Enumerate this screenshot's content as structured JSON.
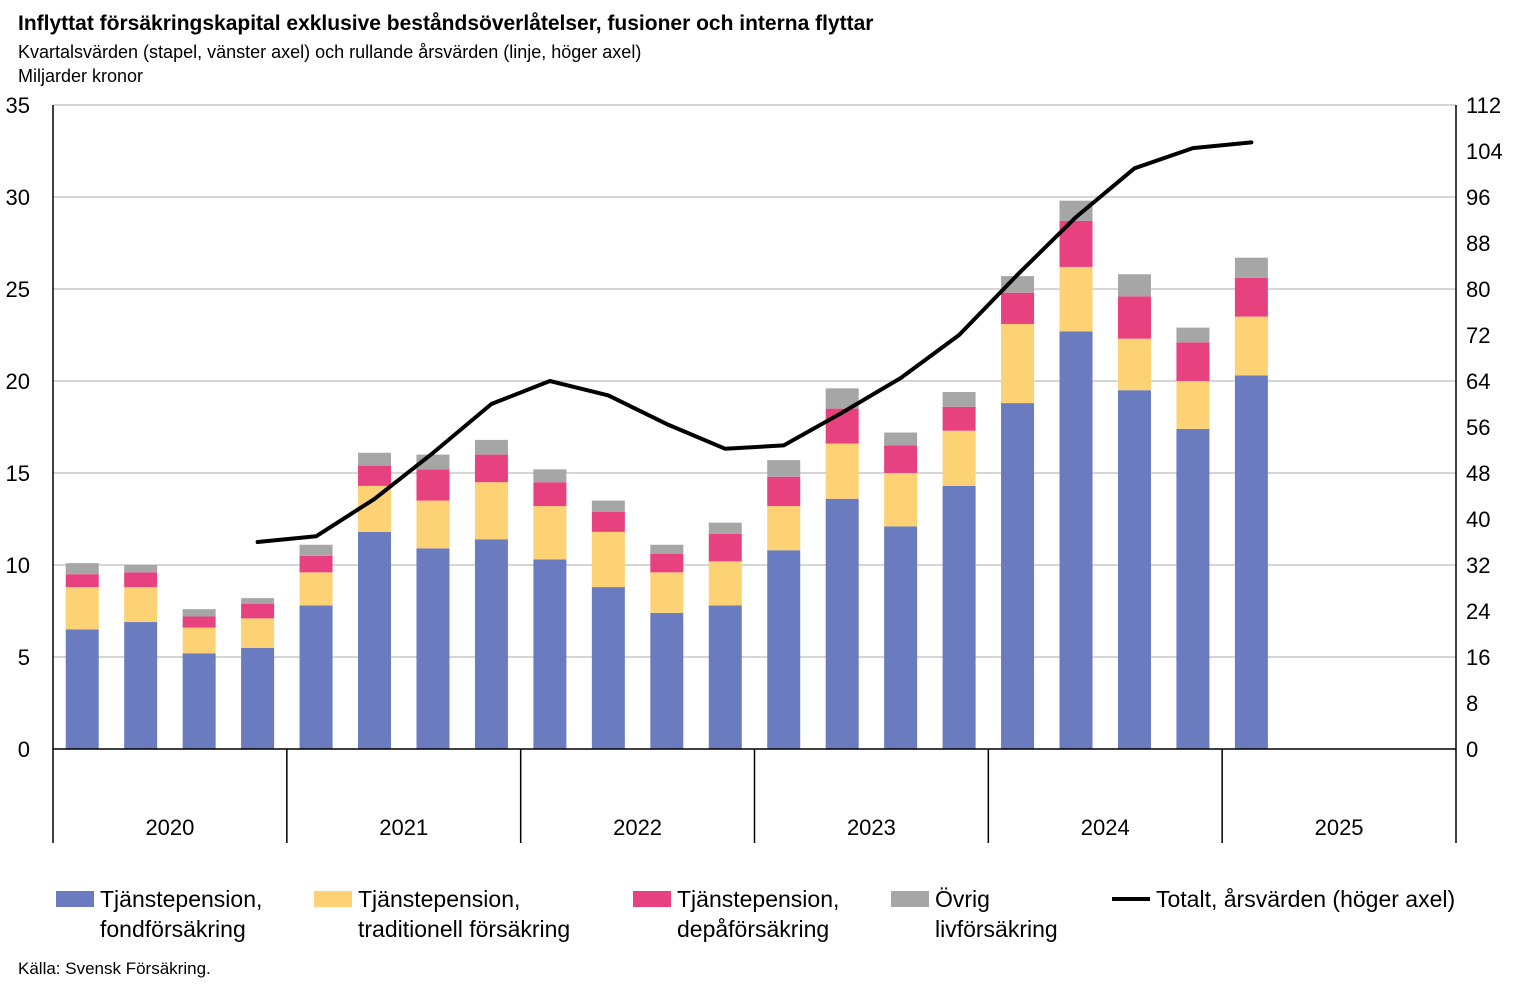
{
  "title": "Inflyttat försäkringskapital  exklusive beståndsöverlåtelser, fusioner och interna flyttar",
  "subtitle": "Kvartalsvärden (stapel, vänster axel) och rullande årsvärden (linje, höger axel)",
  "unit": "Miljarder kronor",
  "source": "Källa: Svensk Försäkring.",
  "legend": {
    "fond_line1": "Tjänstepension,",
    "fond_line2": "fondförsäkring",
    "trad_line1": "Tjänstepension,",
    "trad_line2": "traditionell försäkring",
    "depa_line1": "Tjänstepension,",
    "depa_line2": "depåförsäkring",
    "ovrig_line1": "Övrig",
    "ovrig_line2": "livförsäkring",
    "total": "Totalt, årsvärden (höger axel)"
  },
  "chart_data": {
    "type": "bar",
    "stacked": true,
    "years": [
      "2020",
      "2021",
      "2022",
      "2023",
      "2024",
      "2025"
    ],
    "quarters_per_year": 4,
    "left_axis": {
      "ylim": [
        0,
        35
      ],
      "ticks": [
        "0",
        "5",
        "10",
        "15",
        "20",
        "25",
        "30",
        "35"
      ]
    },
    "right_axis": {
      "ylim": [
        0,
        112
      ],
      "ticks": [
        "0",
        "8",
        "16",
        "24",
        "32",
        "40",
        "48",
        "56",
        "64",
        "72",
        "80",
        "88",
        "96",
        "104",
        "112"
      ]
    },
    "colors": {
      "fond": "#6A7BBF",
      "trad": "#FDD275",
      "depa": "#E8417F",
      "ovrig": "#A6A6A6",
      "line": "#000000",
      "grid": "#C8C8C8"
    },
    "series": [
      {
        "name": "Tjänstepension, fondförsäkring",
        "key": "fond",
        "values": [
          6.5,
          6.9,
          5.2,
          5.5,
          7.8,
          11.8,
          10.9,
          11.4,
          10.3,
          8.8,
          7.4,
          7.8,
          10.8,
          13.6,
          12.1,
          14.3,
          18.8,
          22.7,
          19.5,
          17.4,
          20.3
        ]
      },
      {
        "name": "Tjänstepension, traditionell försäkring",
        "key": "trad",
        "values": [
          2.3,
          1.9,
          1.4,
          1.6,
          1.8,
          2.5,
          2.6,
          3.1,
          2.9,
          3.0,
          2.2,
          2.4,
          2.4,
          3.0,
          2.9,
          3.0,
          4.3,
          3.5,
          2.8,
          2.6,
          3.2
        ]
      },
      {
        "name": "Tjänstepension, depåförsäkring",
        "key": "depa",
        "values": [
          0.7,
          0.8,
          0.6,
          0.8,
          0.9,
          1.1,
          1.7,
          1.5,
          1.3,
          1.1,
          1.0,
          1.5,
          1.6,
          1.9,
          1.5,
          1.3,
          1.7,
          2.5,
          2.3,
          2.1,
          2.1
        ]
      },
      {
        "name": "Övrig livförsäkring",
        "key": "ovrig",
        "values": [
          0.6,
          0.4,
          0.4,
          0.3,
          0.6,
          0.7,
          0.8,
          0.8,
          0.7,
          0.6,
          0.5,
          0.6,
          0.9,
          1.1,
          0.7,
          0.8,
          0.9,
          1.1,
          1.2,
          0.8,
          1.1
        ]
      },
      {
        "name": "Totalt, årsvärden (höger axel)",
        "key": "total",
        "axis": "right",
        "type": "line",
        "values": [
          null,
          null,
          null,
          36.0,
          37.0,
          43.5,
          51.5,
          60.0,
          64.0,
          61.5,
          56.5,
          52.2,
          52.8,
          58.5,
          64.5,
          72.0,
          82.5,
          92.5,
          101.0,
          104.5,
          105.5
        ]
      }
    ]
  }
}
